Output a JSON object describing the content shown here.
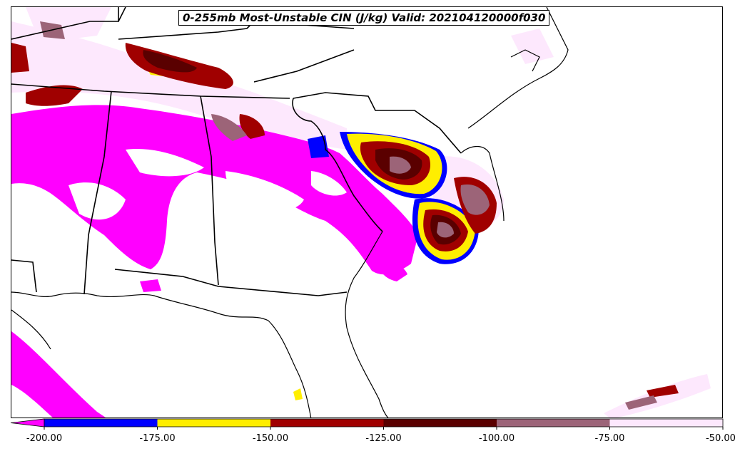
{
  "title": "0-255mb Most-Unstable CIN (J/kg) Valid: 202104120000f030",
  "colorbar": {
    "ticks": [
      "-200.00",
      "-175.00",
      "-150.00",
      "-125.00",
      "-100.00",
      "-75.00",
      "-50.00"
    ],
    "tick_values": [
      -200,
      -175,
      -150,
      -125,
      -100,
      -75,
      -50
    ],
    "bins": [
      {
        "from": -200,
        "to": -175,
        "color": "#0000ff"
      },
      {
        "from": -175,
        "to": -150,
        "color": "#ffee00"
      },
      {
        "from": -150,
        "to": -125,
        "color": "#a00000"
      },
      {
        "from": -125,
        "to": -100,
        "color": "#5a0000"
      },
      {
        "from": -100,
        "to": -75,
        "color": "#9c6478"
      },
      {
        "from": -75,
        "to": -50,
        "color": "#fde8fd"
      }
    ],
    "extend_low_color": "#ff00ff",
    "range": [
      -200,
      -50
    ]
  },
  "colors": {
    "magenta": "#ff00ff",
    "blue": "#0000ff",
    "yellow": "#ffee00",
    "red": "#a00000",
    "darkred": "#5a0000",
    "mauve": "#9c6478",
    "pale": "#fde8fd"
  }
}
